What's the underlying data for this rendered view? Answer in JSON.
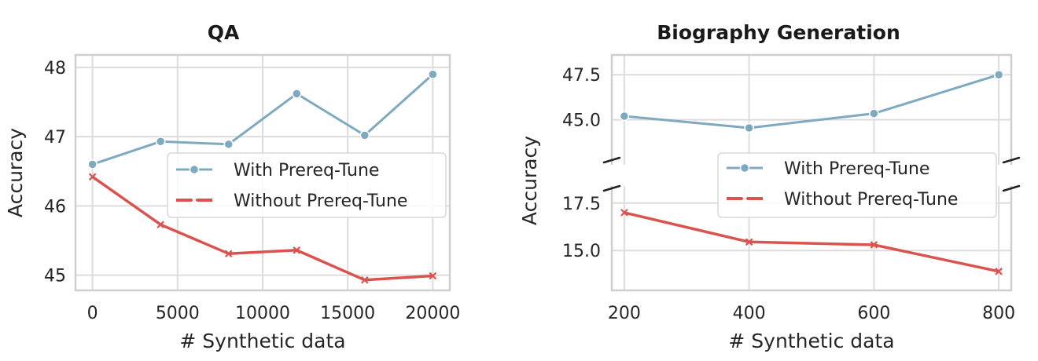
{
  "chart_data": [
    {
      "type": "line",
      "title": "QA",
      "xlabel": "# Synthetic data",
      "ylabel": "Accuracy",
      "x": [
        0,
        4000,
        8000,
        12000,
        16000,
        20000
      ],
      "xticks": [
        "0",
        "5000",
        "10000",
        "15000",
        "20000"
      ],
      "xtick_values": [
        0,
        5000,
        10000,
        15000,
        20000
      ],
      "yticks": [
        "45",
        "46",
        "47",
        "48"
      ],
      "ytick_values": [
        45,
        46,
        47,
        48
      ],
      "xlim": [
        -1000,
        21000
      ],
      "ylim": [
        44.78,
        48.18
      ],
      "grid": true,
      "legend": "center-right",
      "series": [
        {
          "name": "With Prereq-Tune",
          "marker": "circle",
          "color": "#7fa9c1",
          "values": [
            46.6,
            46.93,
            46.89,
            47.62,
            47.02,
            47.9
          ]
        },
        {
          "name": "Without Prereq-Tune",
          "marker": "x",
          "color": "#d9534f",
          "values": [
            46.42,
            45.73,
            45.31,
            45.36,
            44.93,
            44.99
          ]
        }
      ]
    },
    {
      "type": "line",
      "title": "Biography Generation",
      "xlabel": "# Synthetic data",
      "ylabel": "Accuracy",
      "broken_y_axis": true,
      "x": [
        200,
        400,
        600,
        800
      ],
      "xticks": [
        "200",
        "400",
        "600",
        "800"
      ],
      "xtick_values": [
        200,
        400,
        600,
        800
      ],
      "xlim": [
        180,
        820
      ],
      "grid": true,
      "legend": "center-right",
      "upper_panel": {
        "ylim": [
          42.5,
          48.6
        ],
        "yticks": [
          "45.0",
          "47.5"
        ],
        "ytick_values": [
          45.0,
          47.5
        ]
      },
      "lower_panel": {
        "ylim": [
          12.9,
          18.4
        ],
        "yticks": [
          "15.0",
          "17.5"
        ],
        "ytick_values": [
          15.0,
          17.5
        ]
      },
      "series": [
        {
          "name": "With Prereq-Tune",
          "marker": "circle",
          "color": "#7fa9c1",
          "values": [
            45.2,
            44.55,
            45.35,
            47.5
          ]
        },
        {
          "name": "Without Prereq-Tune",
          "marker": "x",
          "color": "#d9534f",
          "values": [
            17.0,
            15.45,
            15.3,
            13.9
          ]
        }
      ]
    }
  ]
}
